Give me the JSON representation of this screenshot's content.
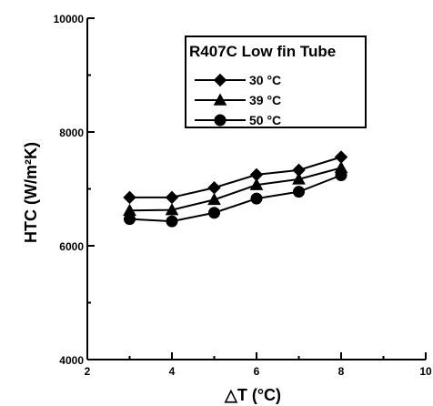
{
  "chart_data": {
    "type": "line",
    "title": "",
    "xlabel": "△T (°C)",
    "ylabel": "HTC (W/m²K)",
    "xlim": [
      2,
      10
    ],
    "ylim": [
      4000,
      10000
    ],
    "x_ticks": [
      "2",
      "4",
      "6",
      "8",
      "10"
    ],
    "y_ticks": [
      "4000",
      "6000",
      "8000",
      "10000"
    ],
    "grid": false,
    "legend_position": "top-right",
    "legend_title": "R407C Low fin Tube",
    "x": [
      3,
      4,
      5,
      6,
      7,
      8
    ],
    "series": [
      {
        "name": "30 °C",
        "marker": "diamond",
        "values": [
          6850,
          6850,
          7020,
          7250,
          7330,
          7560
        ]
      },
      {
        "name": "39 °C",
        "marker": "triangle",
        "values": [
          6620,
          6630,
          6810,
          7070,
          7170,
          7370
        ]
      },
      {
        "name": "50 °C",
        "marker": "circle",
        "values": [
          6470,
          6430,
          6580,
          6830,
          6950,
          7240
        ]
      }
    ]
  }
}
